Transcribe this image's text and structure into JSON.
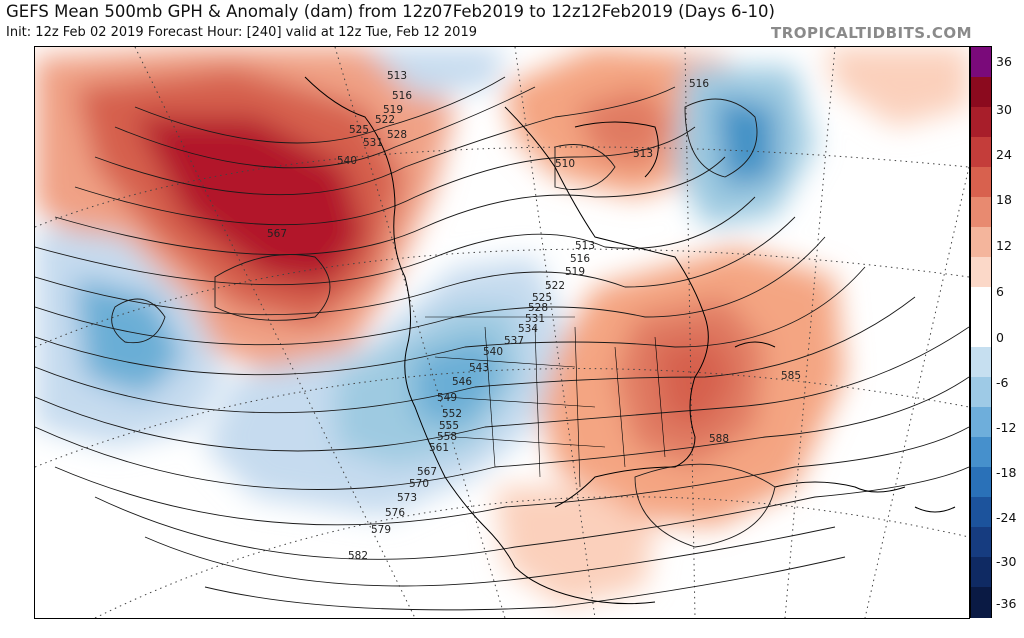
{
  "header": {
    "title": "GEFS Mean 500mb GPH & Anomaly (dam) from 12z07Feb2019 to 12z12Feb2019 (Days 6-10)",
    "subtitle": "Init: 12z Feb 02 2019   Forecast Hour: [240]   valid at 12z Tue, Feb 12 2019",
    "brand": "TROPICALTIDBITS.COM"
  },
  "colorbar": {
    "labels": [
      "36",
      "30",
      "24",
      "18",
      "12",
      "6",
      "0",
      "-6",
      "-12",
      "-18",
      "-24",
      "-30",
      "-36"
    ],
    "colors": [
      "#7a0a7a",
      "#8b0a1e",
      "#a81e2a",
      "#c43d3a",
      "#d8614e",
      "#e88a70",
      "#f4b59c",
      "#fbd8c8",
      "#ffffff",
      "#ffffff",
      "#c6dff0",
      "#9ecae6",
      "#6eaedb",
      "#4690cc",
      "#2a71b8",
      "#1c539c",
      "#163c80",
      "#0f2a63",
      "#0a1a44"
    ]
  },
  "map": {
    "contour_labels": [
      "513",
      "516",
      "519",
      "522",
      "525",
      "528",
      "531",
      "540",
      "567",
      "510",
      "513",
      "516",
      "513",
      "516",
      "519",
      "522",
      "525",
      "528",
      "531",
      "534",
      "537",
      "540",
      "543",
      "546",
      "549",
      "552",
      "555",
      "558",
      "561",
      "567",
      "570",
      "573",
      "576",
      "579",
      "582",
      "585",
      "588"
    ]
  }
}
